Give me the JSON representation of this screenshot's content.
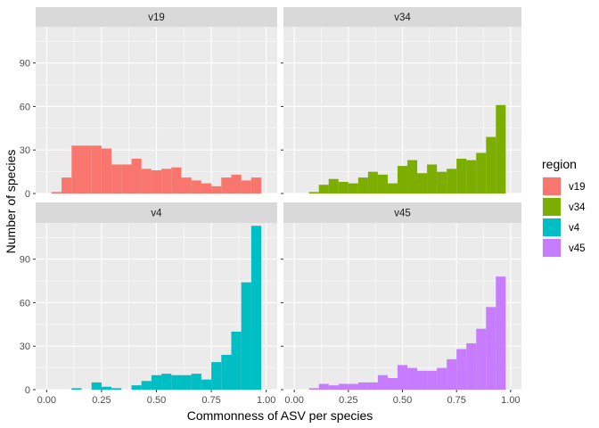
{
  "chart_data": {
    "type": "bar",
    "subtype": "faceted-histogram",
    "xlabel": "Commonness of ASV per species",
    "ylabel": "Number of species",
    "xlim": [
      -0.05,
      1.05
    ],
    "ylim": [
      0,
      115
    ],
    "x_ticks": [
      0.0,
      0.25,
      0.5,
      0.75,
      1.0
    ],
    "x_tick_labels": [
      "0.00",
      "0.25",
      "0.50",
      "0.75",
      "1.00"
    ],
    "y_ticks": [
      0,
      30,
      60,
      90
    ],
    "y_tick_labels": [
      "0",
      "30",
      "60",
      "90"
    ],
    "bin_width": 0.0455,
    "bin_centers": [
      0.0,
      0.0455,
      0.0909,
      0.1364,
      0.1818,
      0.2273,
      0.2727,
      0.3182,
      0.3636,
      0.4091,
      0.4545,
      0.5,
      0.5455,
      0.5909,
      0.6364,
      0.6818,
      0.7273,
      0.7727,
      0.8182,
      0.8636,
      0.9091,
      0.9545,
      1.0
    ],
    "grid": true,
    "legend": {
      "title": "region",
      "position": "right"
    },
    "panels": [
      {
        "name": "v19",
        "color": "#F8766D",
        "values": [
          0,
          1,
          11,
          33,
          33,
          33,
          31,
          20,
          20,
          24,
          17,
          16,
          17,
          18,
          11,
          9,
          7,
          5,
          11,
          13,
          9,
          11,
          0
        ]
      },
      {
        "name": "v34",
        "color": "#7CAE00",
        "values": [
          0,
          0,
          1,
          6,
          10,
          8,
          7,
          11,
          15,
          13,
          7,
          19,
          23,
          14,
          20,
          15,
          17,
          24,
          23,
          28,
          39,
          61,
          0
        ]
      },
      {
        "name": "v4",
        "color": "#00BFC4",
        "values": [
          0,
          0,
          0,
          1,
          0,
          5,
          2,
          1,
          0,
          3,
          6,
          10,
          11,
          10,
          10,
          11,
          7,
          19,
          24,
          40,
          74,
          113,
          0
        ]
      },
      {
        "name": "v45",
        "color": "#C77CFF",
        "values": [
          0,
          0,
          1,
          4,
          3,
          4,
          4,
          5,
          5,
          10,
          8,
          17,
          15,
          13,
          13,
          15,
          21,
          28,
          32,
          42,
          57,
          78,
          0
        ]
      }
    ]
  }
}
